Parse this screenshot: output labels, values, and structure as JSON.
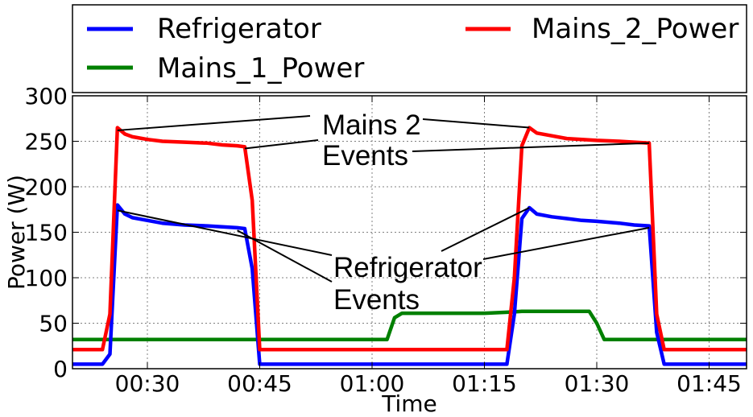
{
  "chart_data": {
    "type": "line",
    "xlabel": "Time",
    "ylabel": "Power (W)",
    "xlim": [
      "00:20:00",
      "01:50:00"
    ],
    "ylim": [
      0,
      300
    ],
    "x_ticks": [
      "00:30",
      "00:45",
      "01:00",
      "01:15",
      "01:30",
      "01:45"
    ],
    "y_ticks": [
      "0",
      "50",
      "100",
      "150",
      "200",
      "250",
      "300"
    ],
    "grid": true,
    "legend": {
      "position": "top",
      "entries": [
        {
          "label": "Refrigerator",
          "color": "#0000ff"
        },
        {
          "label": "Mains_2_Power",
          "color": "#ff0000"
        },
        {
          "label": "Mains_1_Power",
          "color": "#008000"
        }
      ]
    },
    "series": [
      {
        "name": "Refrigerator",
        "color": "#0000ff",
        "points": [
          [
            "00:20:00",
            5
          ],
          [
            "00:24:00",
            5
          ],
          [
            "00:25:00",
            16
          ],
          [
            "00:26:00",
            180
          ],
          [
            "00:27:00",
            170
          ],
          [
            "00:28:00",
            166
          ],
          [
            "00:30:00",
            163
          ],
          [
            "00:32:00",
            160
          ],
          [
            "00:35:00",
            158
          ],
          [
            "00:38:00",
            157
          ],
          [
            "00:40:00",
            156
          ],
          [
            "00:42:00",
            155
          ],
          [
            "00:43:00",
            154
          ],
          [
            "00:44:00",
            110
          ],
          [
            "00:45:00",
            5
          ],
          [
            "01:18:00",
            5
          ],
          [
            "01:19:00",
            60
          ],
          [
            "01:20:00",
            165
          ],
          [
            "01:21:00",
            177
          ],
          [
            "01:22:00",
            170
          ],
          [
            "01:24:00",
            167
          ],
          [
            "01:26:00",
            165
          ],
          [
            "01:28:00",
            163
          ],
          [
            "01:30:00",
            162
          ],
          [
            "01:33:00",
            160
          ],
          [
            "01:35:00",
            158
          ],
          [
            "01:37:00",
            157
          ],
          [
            "01:38:00",
            40
          ],
          [
            "01:39:00",
            5
          ],
          [
            "01:50:00",
            5
          ]
        ]
      },
      {
        "name": "Mains_2_Power",
        "color": "#ff0000",
        "points": [
          [
            "00:20:00",
            21
          ],
          [
            "00:24:00",
            21
          ],
          [
            "00:25:00",
            60
          ],
          [
            "00:26:00",
            265
          ],
          [
            "00:27:00",
            258
          ],
          [
            "00:28:00",
            255
          ],
          [
            "00:30:00",
            252
          ],
          [
            "00:32:00",
            250
          ],
          [
            "00:35:00",
            249
          ],
          [
            "00:38:00",
            248
          ],
          [
            "00:40:00",
            246
          ],
          [
            "00:42:00",
            245
          ],
          [
            "00:43:00",
            244
          ],
          [
            "00:44:00",
            185
          ],
          [
            "00:45:00",
            21
          ],
          [
            "01:18:00",
            21
          ],
          [
            "01:19:00",
            100
          ],
          [
            "01:20:00",
            245
          ],
          [
            "01:21:00",
            265
          ],
          [
            "01:22:00",
            259
          ],
          [
            "01:24:00",
            256
          ],
          [
            "01:26:00",
            253
          ],
          [
            "01:28:00",
            252
          ],
          [
            "01:30:00",
            251
          ],
          [
            "01:33:00",
            250
          ],
          [
            "01:35:00",
            249
          ],
          [
            "01:37:00",
            248
          ],
          [
            "01:38:00",
            60
          ],
          [
            "01:39:00",
            21
          ],
          [
            "01:50:00",
            21
          ]
        ]
      },
      {
        "name": "Mains_1_Power",
        "color": "#008000",
        "points": [
          [
            "00:20:00",
            32
          ],
          [
            "00:30:00",
            32
          ],
          [
            "00:40:00",
            32
          ],
          [
            "00:50:00",
            32
          ],
          [
            "01:00:00",
            32
          ],
          [
            "01:02:00",
            32
          ],
          [
            "01:03:00",
            56
          ],
          [
            "01:04:00",
            61
          ],
          [
            "01:10:00",
            61
          ],
          [
            "01:15:00",
            61
          ],
          [
            "01:18:00",
            62
          ],
          [
            "01:20:00",
            63
          ],
          [
            "01:25:00",
            63
          ],
          [
            "01:29:00",
            63
          ],
          [
            "01:30:00",
            50
          ],
          [
            "01:31:00",
            32
          ],
          [
            "01:40:00",
            32
          ],
          [
            "01:50:00",
            32
          ]
        ]
      }
    ],
    "annotations": [
      {
        "text": [
          "Mains 2",
          "Events"
        ],
        "targets": [
          [
            "00:26:00",
            262
          ],
          [
            "00:43:00",
            242
          ],
          [
            "01:21:00",
            265
          ],
          [
            "01:37:00",
            248
          ]
        ]
      },
      {
        "text": [
          "Refrigerator",
          "Events"
        ],
        "targets": [
          [
            "00:26:00",
            174
          ],
          [
            "00:42:00",
            152
          ],
          [
            "01:21:00",
            177
          ],
          [
            "01:37:00",
            155
          ]
        ]
      }
    ]
  }
}
